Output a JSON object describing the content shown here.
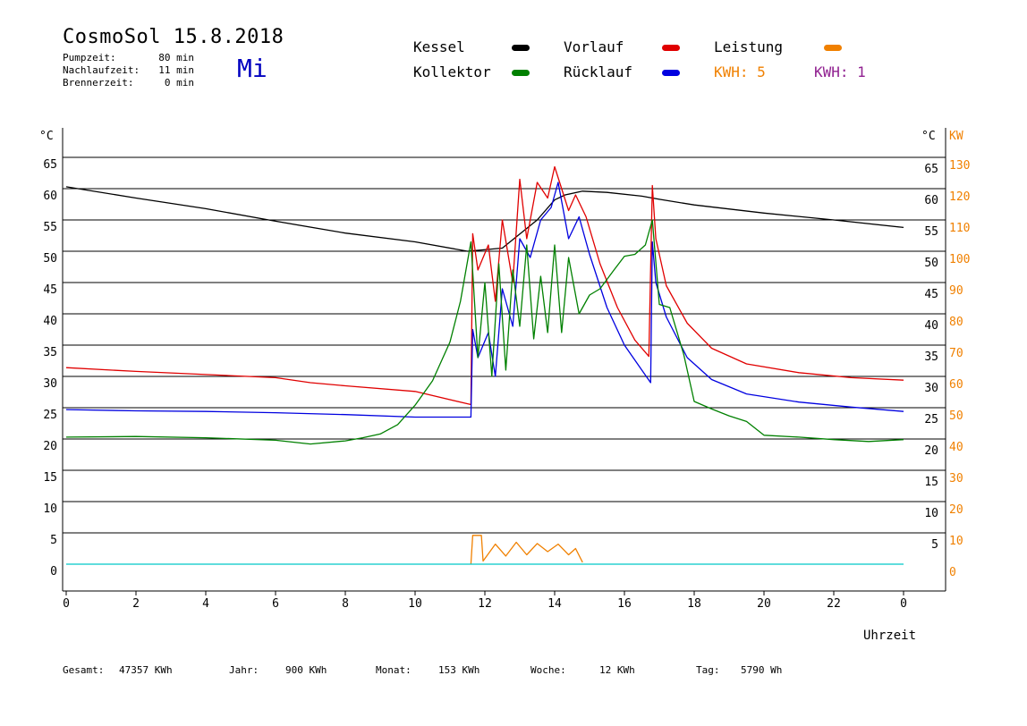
{
  "header": {
    "title": "CosmoSol 15.8.2018",
    "day": "Mi",
    "meta": [
      {
        "label": "Pumpzeit:",
        "value": "80 min"
      },
      {
        "label": "Nachlaufzeit:",
        "value": "11 min"
      },
      {
        "label": "Brennerzeit:",
        "value": "0 min"
      }
    ]
  },
  "legend": {
    "kessel": {
      "label": "Kessel",
      "color": "#000000"
    },
    "vorlauf": {
      "label": "Vorlauf",
      "color": "#e00000"
    },
    "leistung": {
      "label": "Leistung",
      "color": "#f08000"
    },
    "kollektor": {
      "label": "Kollektor",
      "color": "#008000"
    },
    "ruecklauf": {
      "label": "Rücklauf",
      "color": "#0000e0"
    },
    "kwh_a": {
      "label": "KWH: 5",
      "color": "#f08000"
    },
    "kwh_b": {
      "label": "KWH: 1",
      "color": "#902090"
    }
  },
  "totals": [
    {
      "label": "Gesamt:",
      "value": "47357 KWh"
    },
    {
      "label": "Jahr:",
      "value": "900 KWh"
    },
    {
      "label": "Monat:",
      "value": "153 KWh"
    },
    {
      "label": "Woche:",
      "value": "12 KWh"
    },
    {
      "label": "Tag:",
      "value": "5790 Wh"
    }
  ],
  "chart_data": {
    "type": "line",
    "xlabel": "Uhrzeit",
    "ylabel_left": "°C",
    "ylabel_right_temp": "°C",
    "ylabel_right_power": "KW",
    "xlim": [
      0,
      24
    ],
    "ylim": [
      0,
      65
    ],
    "x_ticks": [
      "0",
      "2",
      "4",
      "6",
      "8",
      "10",
      "12",
      "14",
      "16",
      "18",
      "20",
      "22",
      "0"
    ],
    "y_ticks_left": [
      "0",
      "5",
      "10",
      "15",
      "20",
      "25",
      "30",
      "35",
      "40",
      "45",
      "50",
      "55",
      "60",
      "65"
    ],
    "y_ticks_right": [
      "",
      "5",
      "10",
      "15",
      "20",
      "25",
      "30",
      "35",
      "40",
      "45",
      "50",
      "55",
      "60",
      "65"
    ],
    "y2_ticks": [
      "0",
      "10",
      "20",
      "30",
      "40",
      "50",
      "60",
      "70",
      "80",
      "90",
      "100",
      "110",
      "120",
      "130"
    ],
    "grid": "horizontal",
    "series": [
      {
        "name": "Kessel",
        "color": "#000000",
        "x": [
          0,
          2,
          4,
          6,
          8,
          10,
          11.5,
          12.5,
          13.5,
          14,
          14.3,
          14.8,
          15.5,
          16.5,
          17,
          18,
          20,
          22,
          24
        ],
        "y": [
          60.3,
          58.5,
          56.8,
          54.8,
          52.9,
          51.5,
          50,
          50.5,
          55,
          58.2,
          59,
          59.6,
          59.4,
          58.8,
          58.3,
          57.4,
          56.1,
          55,
          53.8
        ]
      },
      {
        "name": "Vorlauf",
        "color": "#e00000",
        "x": [
          0,
          2,
          4,
          6,
          7,
          8,
          10,
          11.6,
          11.65,
          11.8,
          12.1,
          12.3,
          12.5,
          12.8,
          13,
          13.2,
          13.5,
          13.8,
          14,
          14.2,
          14.4,
          14.6,
          14.9,
          15.3,
          15.8,
          16.3,
          16.7,
          16.8,
          16.9,
          17.2,
          17.8,
          18.5,
          19.5,
          21,
          22.5,
          24
        ],
        "y": [
          31.4,
          30.8,
          30.3,
          29.8,
          29,
          28.5,
          27.6,
          25.5,
          52.8,
          47,
          51,
          42,
          55,
          45,
          61.5,
          52,
          61,
          58.5,
          63.5,
          60,
          56.5,
          59,
          55.5,
          48,
          41,
          35.8,
          33.2,
          60.5,
          52,
          44.5,
          38.5,
          34.5,
          32,
          30.6,
          29.8,
          29.4
        ]
      },
      {
        "name": "Rücklauf",
        "color": "#0000e0",
        "x": [
          0,
          2,
          4,
          6,
          8,
          10,
          11.6,
          11.65,
          11.8,
          12.1,
          12.3,
          12.5,
          12.8,
          13,
          13.3,
          13.6,
          13.9,
          14.1,
          14.4,
          14.7,
          15,
          15.5,
          16,
          16.5,
          16.75,
          16.8,
          16.9,
          17.2,
          17.8,
          18.5,
          19.5,
          21,
          22.5,
          24
        ],
        "y": [
          24.7,
          24.5,
          24.4,
          24.2,
          23.9,
          23.5,
          23.5,
          37.5,
          33,
          37,
          30,
          44,
          38,
          52,
          49,
          55,
          57,
          61,
          52,
          55.5,
          49.5,
          41,
          35,
          31,
          29,
          51.5,
          45,
          39.5,
          33,
          29.5,
          27.2,
          25.9,
          25.1,
          24.4
        ]
      },
      {
        "name": "Kollektor",
        "color": "#008000",
        "x": [
          0,
          2,
          4,
          6,
          7,
          8,
          8.5,
          9,
          9.5,
          10,
          10.5,
          11,
          11.3,
          11.6,
          11.8,
          12,
          12.2,
          12.4,
          12.6,
          12.8,
          13,
          13.2,
          13.4,
          13.6,
          13.8,
          14,
          14.2,
          14.4,
          14.7,
          15,
          15.3,
          15.7,
          16,
          16.3,
          16.6,
          16.8,
          17,
          17.3,
          17.7,
          18,
          18.5,
          19,
          19.5,
          20,
          21,
          22,
          23,
          24
        ],
        "y": [
          20.3,
          20.4,
          20.2,
          19.8,
          19.2,
          19.7,
          20.2,
          20.8,
          22.3,
          25.4,
          29.3,
          35.5,
          42,
          51.5,
          33,
          45,
          30,
          48,
          31,
          47,
          38,
          51,
          36,
          46,
          37,
          51,
          37,
          49,
          40,
          43,
          44,
          47,
          49.2,
          49.5,
          51,
          55,
          41.5,
          41,
          33.5,
          26,
          24.8,
          23.7,
          22.8,
          20.6,
          20.3,
          19.9,
          19.6,
          19.9
        ]
      },
      {
        "name": "Leistung",
        "color": "#f08000",
        "axis": "y2",
        "x": [
          11.6,
          11.65,
          11.9,
          11.95,
          12.3,
          12.6,
          12.9,
          13.2,
          13.5,
          13.8,
          14.1,
          14.4,
          14.6,
          14.8
        ],
        "y": [
          0,
          4.6,
          4.6,
          0.5,
          3.2,
          1.3,
          3.5,
          1.5,
          3.3,
          2,
          3.2,
          1.5,
          2.5,
          0.3
        ]
      },
      {
        "name": "Pumpe",
        "color": "#00c8c8",
        "x": [
          0,
          24
        ],
        "y": [
          0,
          0
        ]
      }
    ]
  }
}
